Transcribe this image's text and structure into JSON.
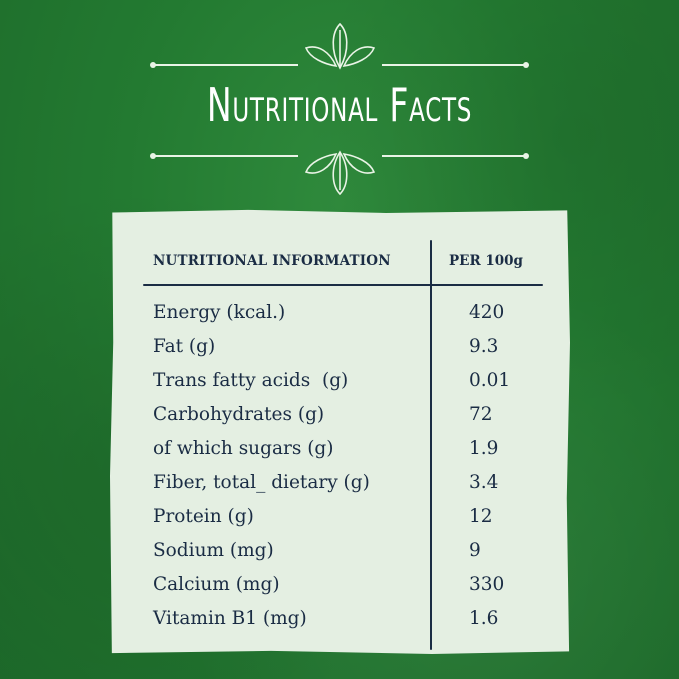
{
  "title": "Nutritional Facts",
  "colors": {
    "background": "#237a31",
    "card": "#e4efe2",
    "text": "#1a2c44",
    "ornament": "#e9f4e6"
  },
  "ornament_icon": "leaf-sprig-icon",
  "table": {
    "header_left": "NUTRITIONAL INFORMATION",
    "header_right": "PER 100g",
    "rows": [
      {
        "label": "Energy (kcal.)",
        "value": "420"
      },
      {
        "label": "Fat (g)",
        "value": "9.3"
      },
      {
        "label": "Trans fatty acids  (g)",
        "value": "0.01"
      },
      {
        "label": "Carbohydrates (g)",
        "value": "72"
      },
      {
        "label": "of which sugars (g)",
        "value": "1.9"
      },
      {
        "label": "Fiber, total_ dietary (g)",
        "value": "3.4"
      },
      {
        "label": "Protein (g)",
        "value": "12"
      },
      {
        "label": "Sodium (mg)",
        "value": "9"
      },
      {
        "label": "Calcium (mg)",
        "value": "330"
      },
      {
        "label": "Vitamin B1 (mg)",
        "value": "1.6"
      }
    ]
  }
}
